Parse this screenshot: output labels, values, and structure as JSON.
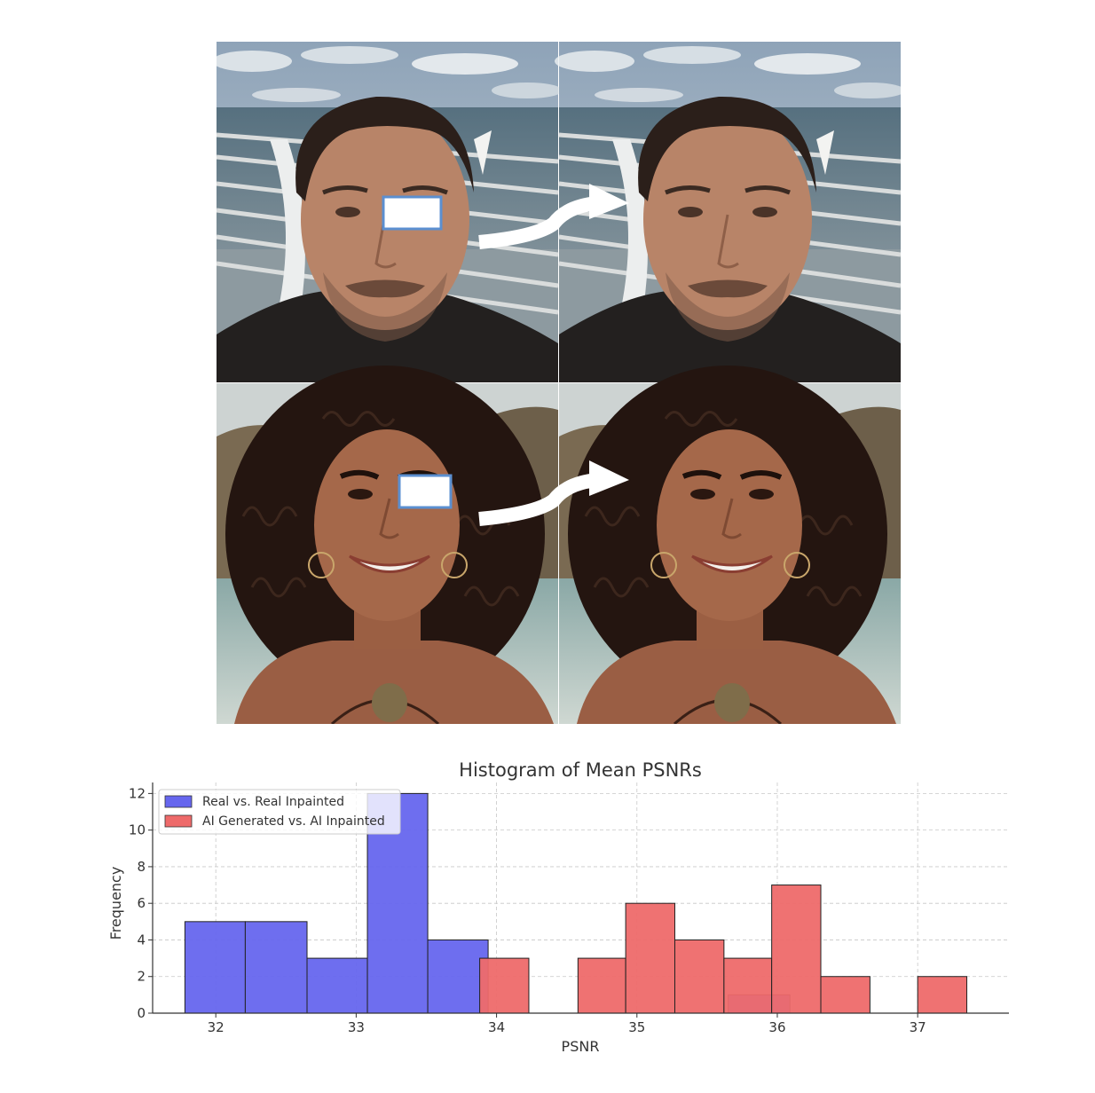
{
  "figure": {
    "panels": [
      {
        "row": "top",
        "subject": "real-photo",
        "mask": "white-rectangle-over-eye",
        "colors": {
          "sky": "#a9b8c8",
          "sea": "#5f7482",
          "hair": "#2b1f1a",
          "skin": "#b88468",
          "shirt": "#23201f"
        }
      },
      {
        "row": "bottom",
        "subject": "ai-generated-photo",
        "mask": "white-rectangle-over-eye",
        "colors": {
          "background": "#8f8a7a",
          "hair": "#241510",
          "skin": "#a5684a"
        }
      }
    ],
    "arrow_color": "#ffffff",
    "mask_border_color": "#5b8fd0"
  },
  "chart_data": {
    "type": "bar",
    "title": "Histogram of Mean PSNRs",
    "xlabel": "PSNR",
    "ylabel": "Frequency",
    "xlim": [
      31.55,
      37.65
    ],
    "ylim": [
      0,
      12.6
    ],
    "xticks": [
      32,
      33,
      34,
      35,
      36,
      37
    ],
    "yticks": [
      0,
      2,
      4,
      6,
      8,
      10,
      12
    ],
    "grid": true,
    "legend_position": "upper left",
    "series": [
      {
        "name": "Real vs. Real Inpainted",
        "color": "#6666ee",
        "bins": [
          {
            "x0": 31.78,
            "x1": 32.21,
            "count": 5
          },
          {
            "x0": 32.21,
            "x1": 32.65,
            "count": 5
          },
          {
            "x0": 32.65,
            "x1": 33.08,
            "count": 3
          },
          {
            "x0": 33.08,
            "x1": 33.51,
            "count": 12
          },
          {
            "x0": 33.51,
            "x1": 33.94,
            "count": 4
          },
          {
            "x0": 35.65,
            "x1": 36.09,
            "count": 1
          }
        ]
      },
      {
        "name": "AI Generated vs. AI Inpainted",
        "color": "#ee6a6a",
        "bins": [
          {
            "x0": 33.88,
            "x1": 34.23,
            "count": 3
          },
          {
            "x0": 34.23,
            "x1": 34.58,
            "count": 0
          },
          {
            "x0": 34.58,
            "x1": 34.92,
            "count": 3
          },
          {
            "x0": 34.92,
            "x1": 35.27,
            "count": 6
          },
          {
            "x0": 35.27,
            "x1": 35.62,
            "count": 4
          },
          {
            "x0": 35.62,
            "x1": 35.96,
            "count": 3
          },
          {
            "x0": 35.96,
            "x1": 36.31,
            "count": 7
          },
          {
            "x0": 36.31,
            "x1": 36.66,
            "count": 2
          },
          {
            "x0": 36.66,
            "x1": 37.0,
            "count": 0
          },
          {
            "x0": 37.0,
            "x1": 37.35,
            "count": 2
          }
        ]
      }
    ]
  }
}
